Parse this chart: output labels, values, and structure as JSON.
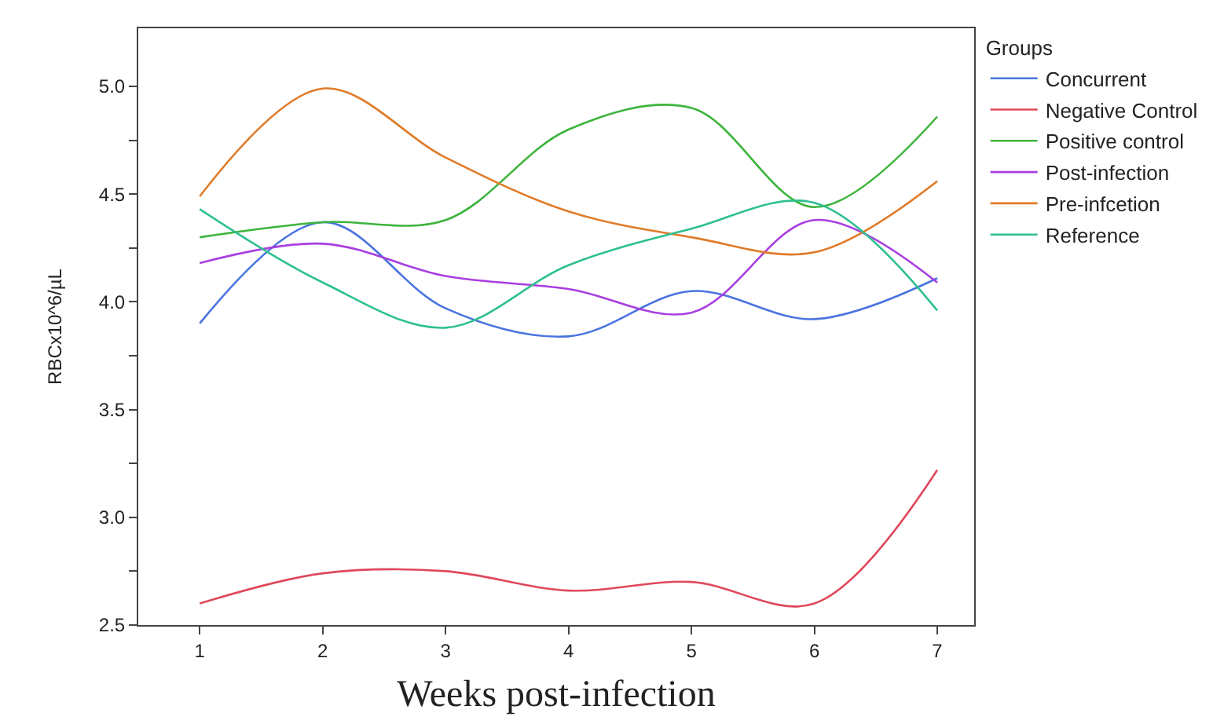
{
  "chart_data": {
    "type": "line",
    "xlabel": "Weeks post-infection",
    "ylabel": "RBCx10^6/µL",
    "legend_title": "Groups",
    "legend": "right",
    "marker": "none",
    "line_style": "solid",
    "x": [
      1,
      2,
      3,
      4,
      5,
      6,
      7
    ],
    "xlim": [
      0.5,
      7.3
    ],
    "xticks": [
      1,
      2,
      3,
      4,
      5,
      6,
      7
    ],
    "ylim": [
      2.5,
      5.27
    ],
    "yticks": [
      {
        "value": 2.5,
        "label": "2.5"
      },
      {
        "value": 2.75,
        "label": null
      },
      {
        "value": 3.0,
        "label": "3.0"
      },
      {
        "value": 3.25,
        "label": null
      },
      {
        "value": 3.5,
        "label": "3.5"
      },
      {
        "value": 3.75,
        "label": null
      },
      {
        "value": 4.0,
        "label": "4.0"
      },
      {
        "value": 4.25,
        "label": null
      },
      {
        "value": 4.5,
        "label": "4.5"
      },
      {
        "value": 4.75,
        "label": null
      },
      {
        "value": 5.0,
        "label": "5.0"
      }
    ],
    "series": [
      {
        "name": "Concurrent",
        "color": "#4a74e0",
        "values": [
          3.9,
          4.37,
          3.97,
          3.84,
          4.05,
          3.92,
          4.11
        ]
      },
      {
        "name": "Negative Control",
        "color": "#e0485a",
        "values": [
          2.6,
          2.74,
          2.75,
          2.66,
          2.7,
          2.6,
          3.22
        ]
      },
      {
        "name": "Positive control",
        "color": "#3cb43c",
        "values": [
          4.3,
          4.37,
          4.38,
          4.8,
          4.9,
          4.44,
          4.86
        ]
      },
      {
        "name": "Post-infection",
        "color": "#a83ee0",
        "values": [
          4.18,
          4.27,
          4.12,
          4.06,
          3.95,
          4.38,
          4.09
        ]
      },
      {
        "name": "Pre-infcetion",
        "color": "#e07b28",
        "values": [
          4.49,
          4.99,
          4.67,
          4.42,
          4.3,
          4.23,
          4.56
        ]
      },
      {
        "name": "Reference",
        "color": "#2ec08e",
        "values": [
          4.43,
          4.09,
          3.88,
          4.17,
          4.34,
          4.46,
          3.96
        ]
      }
    ]
  }
}
